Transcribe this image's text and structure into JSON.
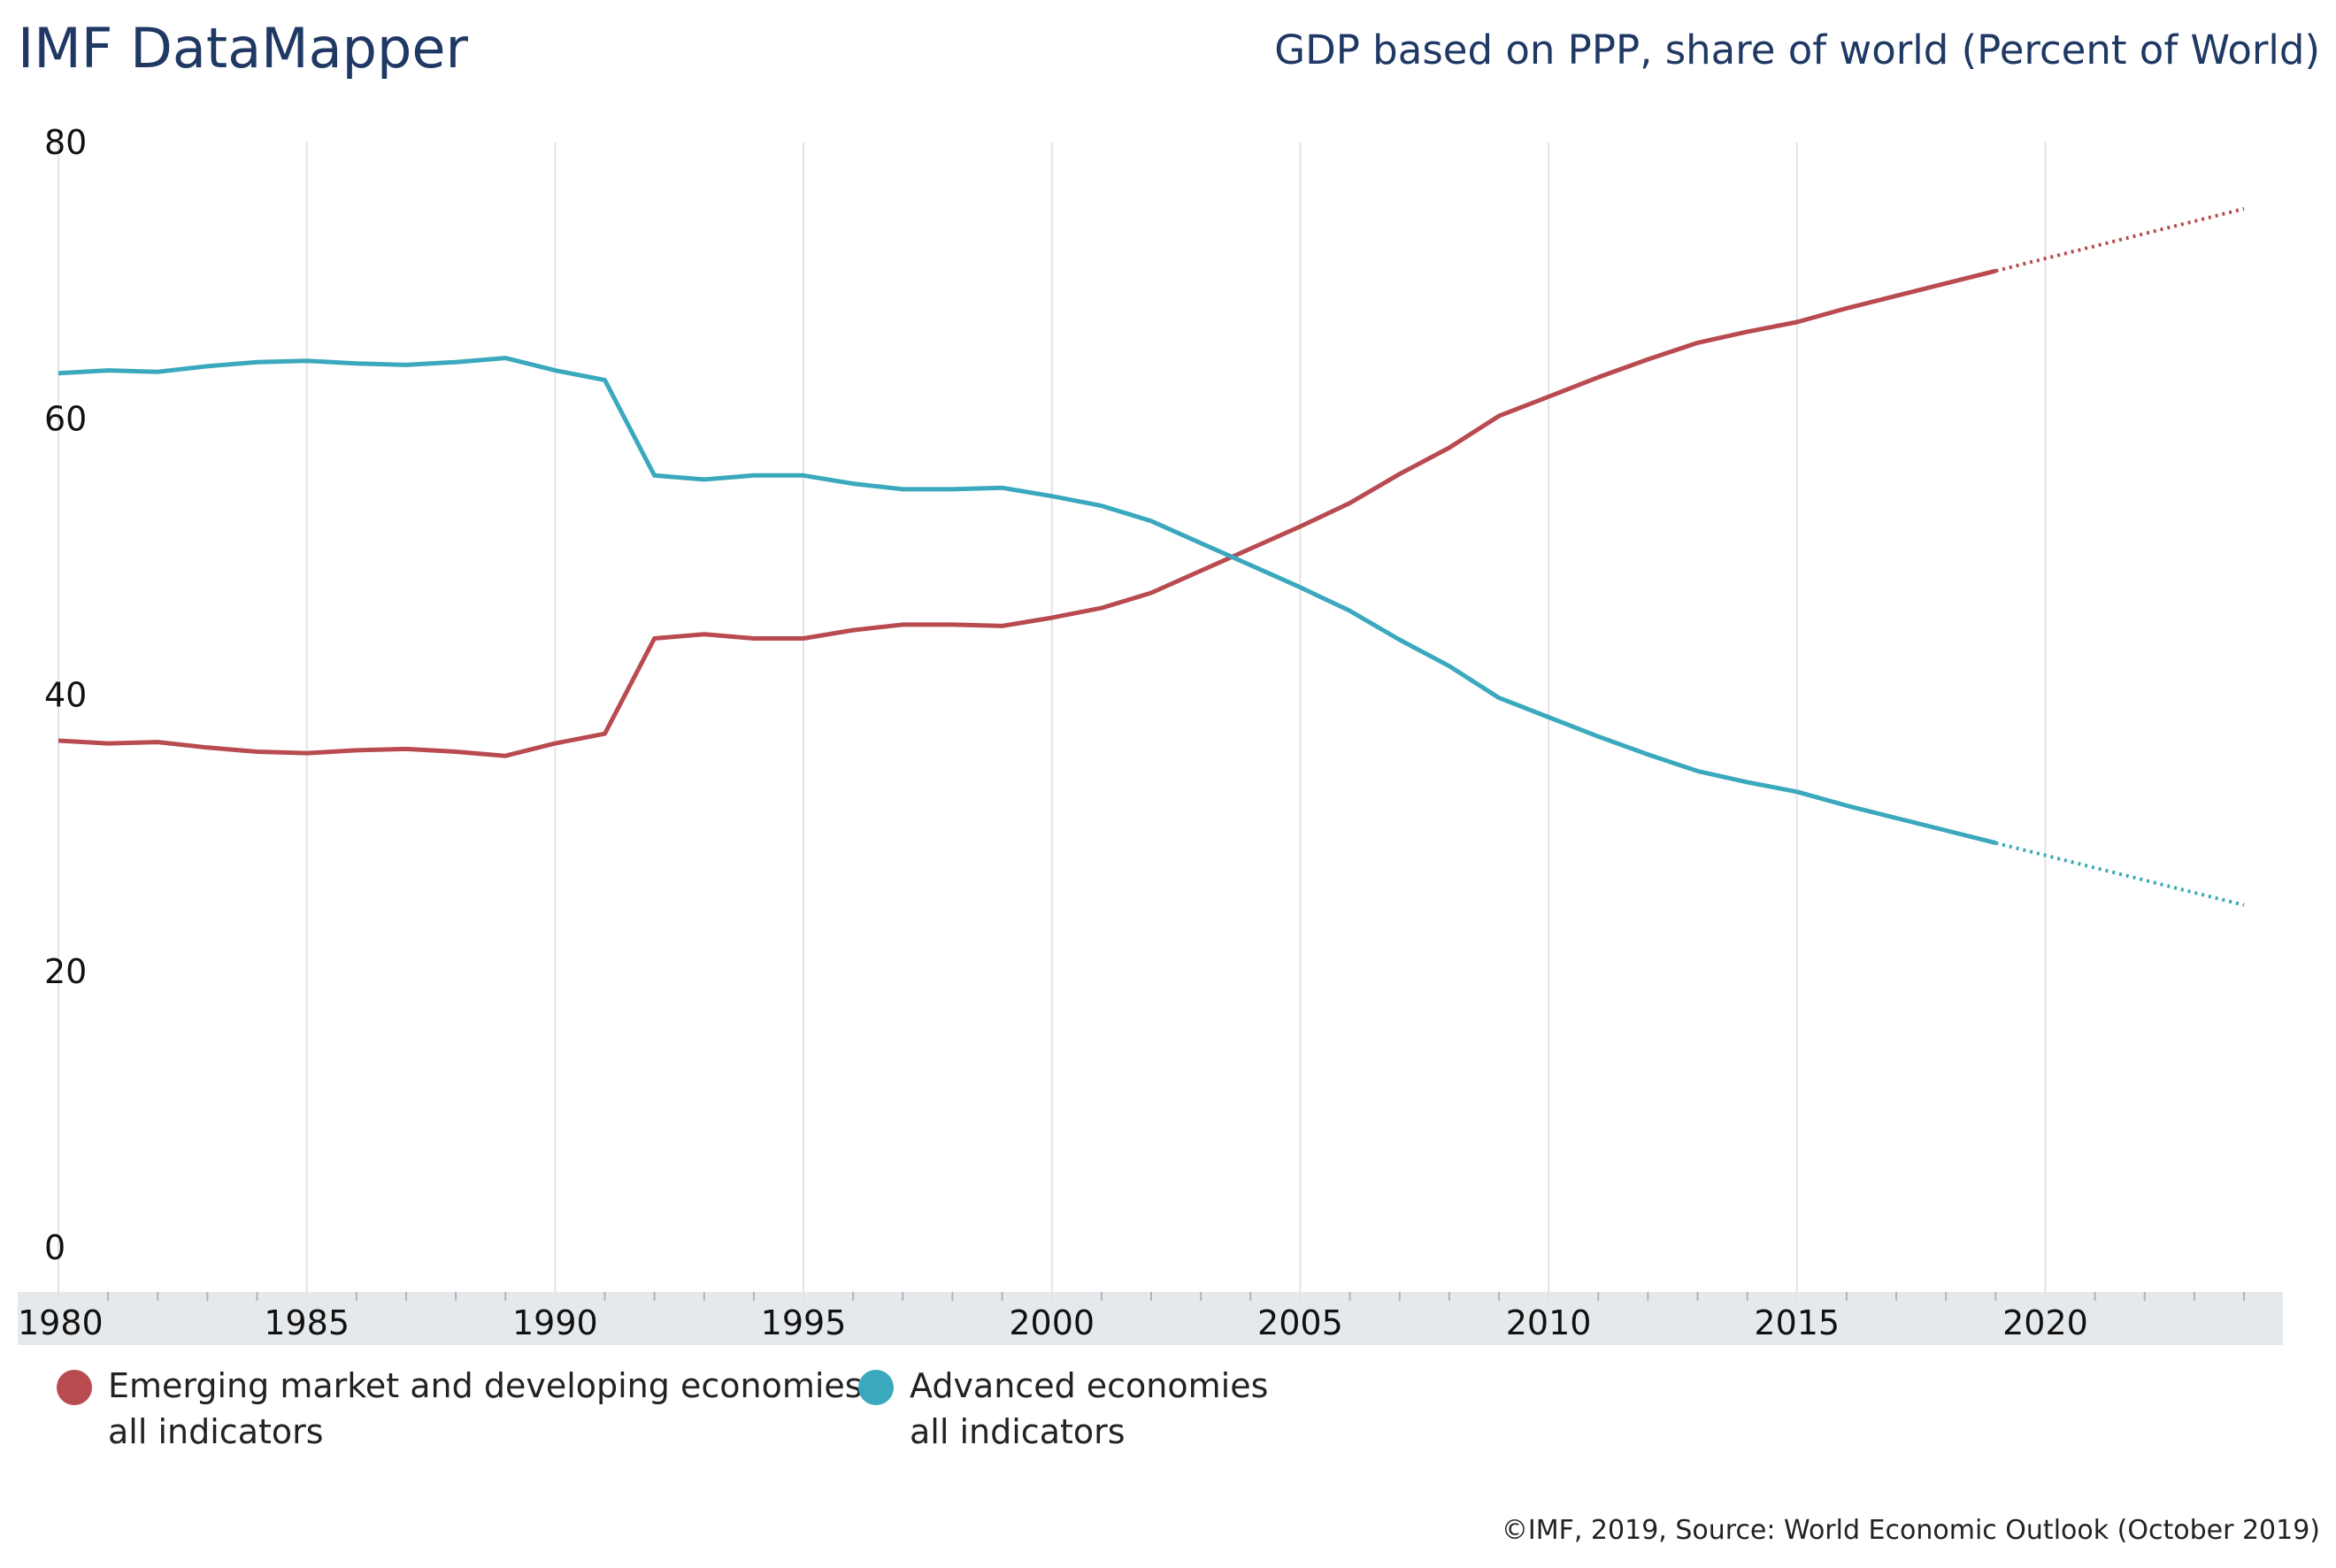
{
  "header": {
    "brand": "IMF DataMapper",
    "title": "GDP based on PPP, share of world (Percent of World)"
  },
  "footer": {
    "credit": "©IMF, 2019, Source: World Economic Outlook (October 2019)"
  },
  "legend": [
    {
      "line1": "Emerging market and developing economies",
      "line2": "all indicators",
      "color": "#b84a50"
    },
    {
      "line1": "Advanced economies",
      "line2": "all indicators",
      "color": "#3aa8bd"
    }
  ],
  "chart_data": {
    "type": "line",
    "title": "GDP based on PPP, share of world (Percent of World)",
    "xlim": [
      1980,
      2024
    ],
    "ylim": [
      0,
      80
    ],
    "yticks": [
      0,
      20,
      40,
      60,
      80
    ],
    "xticks": [
      1980,
      1985,
      1990,
      1995,
      2000,
      2005,
      2010,
      2015,
      2020
    ],
    "grid": "vertical",
    "legend_position": "bottom-left",
    "projection_start": 2019,
    "x": [
      1980,
      1981,
      1982,
      1983,
      1984,
      1985,
      1986,
      1987,
      1988,
      1989,
      1990,
      1991,
      1992,
      1993,
      1994,
      1995,
      1996,
      1997,
      1998,
      1999,
      2000,
      2001,
      2002,
      2003,
      2004,
      2005,
      2006,
      2007,
      2008,
      2009,
      2010,
      2011,
      2012,
      2013,
      2014,
      2015,
      2016,
      2017,
      2018,
      2019,
      2020,
      2021,
      2022,
      2023,
      2024
    ],
    "series": [
      {
        "name": "Emerging market and developing economies",
        "color": "#b84a50",
        "values": [
          36.7,
          36.5,
          36.6,
          36.2,
          35.9,
          35.8,
          36.0,
          36.1,
          35.9,
          35.6,
          36.5,
          37.2,
          44.1,
          44.4,
          44.1,
          44.1,
          44.7,
          45.1,
          45.1,
          45.0,
          45.6,
          46.3,
          47.4,
          49.0,
          50.6,
          52.2,
          53.9,
          56.0,
          57.9,
          60.2,
          61.6,
          63.0,
          64.3,
          65.5,
          66.3,
          67.0,
          68.0,
          68.9,
          69.8,
          70.7,
          71.6,
          72.5,
          73.4,
          74.3,
          75.2
        ]
      },
      {
        "name": "Advanced economies",
        "color": "#3aa8bd",
        "values": [
          63.3,
          63.5,
          63.4,
          63.8,
          64.1,
          64.2,
          64.0,
          63.9,
          64.1,
          64.4,
          63.5,
          62.8,
          55.9,
          55.6,
          55.9,
          55.9,
          55.3,
          54.9,
          54.9,
          55.0,
          54.4,
          53.7,
          52.6,
          51.0,
          49.4,
          47.8,
          46.1,
          44.0,
          42.1,
          39.8,
          38.4,
          37.0,
          35.7,
          34.5,
          33.7,
          33.0,
          32.0,
          31.1,
          30.2,
          29.3,
          28.4,
          27.5,
          26.6,
          25.7,
          24.8
        ]
      }
    ]
  }
}
